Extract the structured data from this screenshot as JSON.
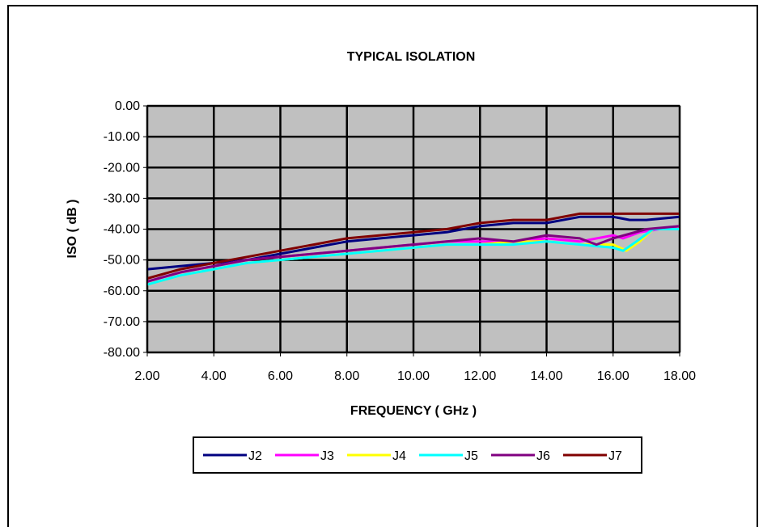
{
  "chart_data": {
    "type": "line",
    "title": "TYPICAL ISOLATION",
    "xlabel": "FREQUENCY ( GHz )",
    "ylabel": "ISO ( dB )",
    "xlim": [
      2,
      18
    ],
    "ylim": [
      -80,
      0
    ],
    "x_ticks": [
      "2.00",
      "4.00",
      "6.00",
      "8.00",
      "10.00",
      "12.00",
      "14.00",
      "16.00",
      "18.00"
    ],
    "y_ticks": [
      "0.00",
      "-10.00",
      "-20.00",
      "-30.00",
      "-40.00",
      "-50.00",
      "-60.00",
      "-70.00",
      "-80.00"
    ],
    "grid": true,
    "plot_background": "#c0c0c0",
    "legend_position": "bottom",
    "series": [
      {
        "name": "J2",
        "color": "#000080",
        "x": [
          2,
          3,
          4,
          5,
          6,
          7,
          8,
          9,
          10,
          11,
          12,
          13,
          14,
          15,
          16,
          16.5,
          17,
          18
        ],
        "values": [
          -53,
          -52,
          -51,
          -50,
          -48,
          -46,
          -44,
          -43,
          -42,
          -41,
          -39,
          -38,
          -38,
          -36,
          -36,
          -37,
          -37,
          -36
        ]
      },
      {
        "name": "J3",
        "color": "#ff00ff",
        "x": [
          2,
          3,
          4,
          5,
          6,
          7,
          8,
          9,
          10,
          11,
          12,
          13,
          14,
          15,
          16,
          16.3,
          16.8,
          18
        ],
        "values": [
          -57,
          -54,
          -52,
          -50,
          -49,
          -48,
          -47,
          -46,
          -45,
          -44,
          -44,
          -44,
          -43,
          -44,
          -42,
          -43,
          -41,
          -39
        ]
      },
      {
        "name": "J4",
        "color": "#ffff00",
        "x": [
          2,
          3,
          4,
          5,
          6,
          7,
          8,
          9,
          10,
          11,
          12,
          13,
          14,
          15,
          16,
          16.4,
          16.8,
          17.2,
          18
        ],
        "values": [
          -58,
          -55,
          -53,
          -51,
          -50,
          -49,
          -48,
          -47,
          -46,
          -45,
          -45,
          -44,
          -44,
          -45,
          -45,
          -47,
          -44,
          -40,
          -40
        ]
      },
      {
        "name": "J5",
        "color": "#00ffff",
        "x": [
          2,
          3,
          4,
          5,
          6,
          7,
          8,
          9,
          10,
          11,
          12,
          13,
          14,
          15,
          16,
          16.3,
          16.7,
          17.2,
          18
        ],
        "values": [
          -58,
          -55,
          -53,
          -51,
          -50,
          -49,
          -48,
          -47,
          -46,
          -45,
          -45,
          -45,
          -44,
          -45,
          -46,
          -47,
          -44,
          -40,
          -40
        ]
      },
      {
        "name": "J6",
        "color": "#800080",
        "x": [
          2,
          3,
          4,
          5,
          6,
          7,
          8,
          9,
          10,
          11,
          12,
          13,
          14,
          15,
          15.5,
          16,
          17,
          18
        ],
        "values": [
          -57,
          -54,
          -52,
          -50,
          -49,
          -48,
          -47,
          -46,
          -45,
          -44,
          -43,
          -44,
          -42,
          -43,
          -45,
          -43,
          -40,
          -39
        ]
      },
      {
        "name": "J7",
        "color": "#800000",
        "x": [
          2,
          3,
          4,
          5,
          6,
          7,
          8,
          9,
          10,
          11,
          12,
          13,
          14,
          15,
          16,
          17,
          18
        ],
        "values": [
          -56,
          -53,
          -51,
          -49,
          -47,
          -45,
          -43,
          -42,
          -41,
          -40,
          -38,
          -37,
          -37,
          -35,
          -35,
          -35,
          -35
        ]
      }
    ]
  }
}
